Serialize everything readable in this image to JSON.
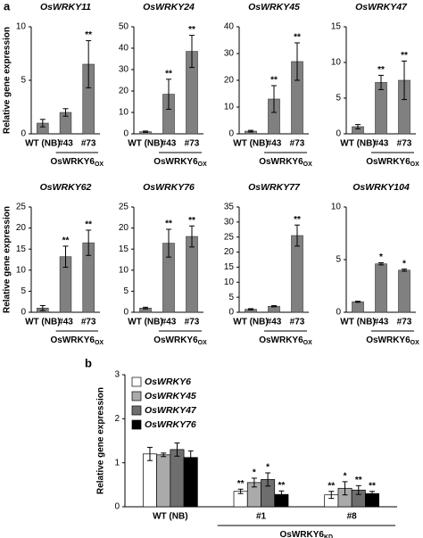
{
  "panel_labels": [
    "a",
    "b"
  ],
  "chart_data": [
    {
      "type": "bar",
      "title": "OsWRKY11",
      "ylabel": "Relative gene expression",
      "categories": [
        "WT (NB)",
        "#43",
        "#73"
      ],
      "values": [
        1.0,
        2.0,
        6.5
      ],
      "errors": [
        0.35,
        0.35,
        2.2
      ],
      "significance": [
        null,
        null,
        "**"
      ],
      "ylim": [
        0,
        10
      ],
      "yticks": [
        0,
        5,
        10
      ],
      "color": "#808080",
      "group_label": "OsWRKY6",
      "group_label_sub": "OX"
    },
    {
      "type": "bar",
      "title": "OsWRKY24",
      "categories": [
        "WT (NB)",
        "#43",
        "#73"
      ],
      "values": [
        1.0,
        18.5,
        38.5
      ],
      "errors": [
        0.3,
        7,
        7.5
      ],
      "significance": [
        null,
        "**",
        "**"
      ],
      "ylim": [
        0,
        50
      ],
      "yticks": [
        0,
        10,
        20,
        30,
        40,
        50
      ],
      "color": "#808080",
      "group_label": "OsWRKY6",
      "group_label_sub": "OX"
    },
    {
      "type": "bar",
      "title": "OsWRKY45",
      "categories": [
        "WT (NB)",
        "#43",
        "#73"
      ],
      "values": [
        1.0,
        13,
        27
      ],
      "errors": [
        0.3,
        5,
        7
      ],
      "significance": [
        null,
        "**",
        "**"
      ],
      "ylim": [
        0,
        40
      ],
      "yticks": [
        0,
        10,
        20,
        30,
        40
      ],
      "color": "#808080",
      "group_label": "OsWRKY6",
      "group_label_sub": "OX"
    },
    {
      "type": "bar",
      "title": "OsWRKY47",
      "categories": [
        "WT (NB)",
        "#43",
        "#73"
      ],
      "values": [
        1.0,
        7.2,
        7.5
      ],
      "errors": [
        0.3,
        1,
        2.7
      ],
      "significance": [
        null,
        "**",
        "**"
      ],
      "ylim": [
        0,
        15
      ],
      "yticks": [
        0,
        5,
        10,
        15
      ],
      "color": "#808080",
      "group_label": "OsWRKY6",
      "group_label_sub": "OX"
    },
    {
      "type": "bar",
      "title": "OsWRKY62",
      "ylabel": "Relative gene expression",
      "categories": [
        "WT (NB)",
        "#43",
        "#73"
      ],
      "values": [
        1.0,
        13.2,
        16.5
      ],
      "errors": [
        0.6,
        2.5,
        3
      ],
      "significance": [
        null,
        "**",
        "**"
      ],
      "ylim": [
        0,
        25
      ],
      "yticks": [
        0,
        5,
        10,
        15,
        20,
        25
      ],
      "color": "#808080",
      "group_label": "OsWRKY6",
      "group_label_sub": "OX"
    },
    {
      "type": "bar",
      "title": "OsWRKY76",
      "categories": [
        "WT (NB)",
        "#43",
        "#73"
      ],
      "values": [
        1.0,
        16.4,
        18
      ],
      "errors": [
        0.2,
        3.3,
        2.5
      ],
      "significance": [
        null,
        "**",
        "**"
      ],
      "ylim": [
        0,
        25
      ],
      "yticks": [
        0,
        5,
        10,
        15,
        20,
        25
      ],
      "color": "#808080",
      "group_label": "OsWRKY6",
      "group_label_sub": "OX"
    },
    {
      "type": "bar",
      "title": "OsWRKY77",
      "categories": [
        "WT (NB)",
        "#43",
        "#73"
      ],
      "values": [
        1.0,
        2.0,
        25.5
      ],
      "errors": [
        0.2,
        0.2,
        3.5
      ],
      "significance": [
        null,
        null,
        "**"
      ],
      "ylim": [
        0,
        35
      ],
      "yticks": [
        0,
        5,
        10,
        15,
        20,
        25,
        30,
        35
      ],
      "color": "#808080",
      "group_label": "OsWRKY6",
      "group_label_sub": "OX"
    },
    {
      "type": "bar",
      "title": "OsWRKY104",
      "categories": [
        "WT (NB)",
        "#43",
        "#73"
      ],
      "values": [
        1.0,
        4.6,
        4.0
      ],
      "errors": [
        0.05,
        0.1,
        0.1
      ],
      "significance": [
        null,
        "*",
        "*"
      ],
      "ylim": [
        0,
        10
      ],
      "yticks": [
        0,
        5,
        10
      ],
      "color": "#808080",
      "group_label": "OsWRKY6",
      "group_label_sub": "OX"
    },
    {
      "type": "grouped_bar",
      "ylabel": "Relative gene expression",
      "categories": [
        "WT (NB)",
        "#1",
        "#8"
      ],
      "ylim": [
        0,
        3
      ],
      "yticks": [
        0,
        1,
        2,
        3
      ],
      "group_label": "OsWRKY6",
      "group_label_sub": "KD",
      "series": [
        {
          "name": "OsWRKY6",
          "color": "#ffffff",
          "values": [
            1.2,
            0.35,
            0.27
          ],
          "errors": [
            0.15,
            0.05,
            0.08
          ],
          "significance": [
            null,
            "**",
            "**"
          ]
        },
        {
          "name": "OsWRKY45",
          "color": "#aaaaaa",
          "values": [
            1.18,
            0.55,
            0.42
          ],
          "errors": [
            0.04,
            0.1,
            0.15
          ],
          "significance": [
            null,
            "*",
            "*"
          ]
        },
        {
          "name": "OsWRKY47",
          "color": "#6e6e6e",
          "values": [
            1.3,
            0.62,
            0.38
          ],
          "errors": [
            0.15,
            0.15,
            0.1
          ],
          "significance": [
            null,
            "*",
            "**"
          ]
        },
        {
          "name": "OsWRKY76",
          "color": "#000000",
          "values": [
            1.12,
            0.28,
            0.3
          ],
          "errors": [
            0.15,
            0.08,
            0.05
          ],
          "significance": [
            null,
            "**",
            "**"
          ]
        }
      ]
    }
  ]
}
